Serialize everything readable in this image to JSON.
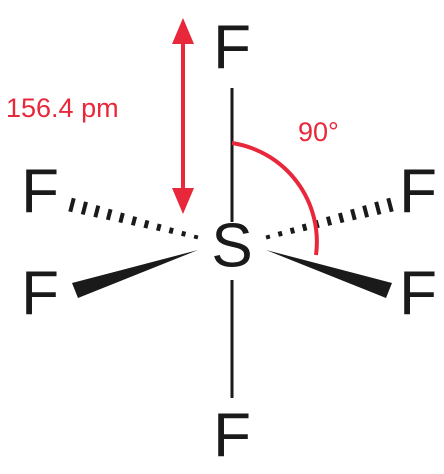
{
  "atoms": {
    "center": "S",
    "ligands": [
      "F",
      "F",
      "F",
      "F",
      "F",
      "F"
    ]
  },
  "annotations": {
    "bond_length": "156.4 pm",
    "angle": "90°"
  }
}
